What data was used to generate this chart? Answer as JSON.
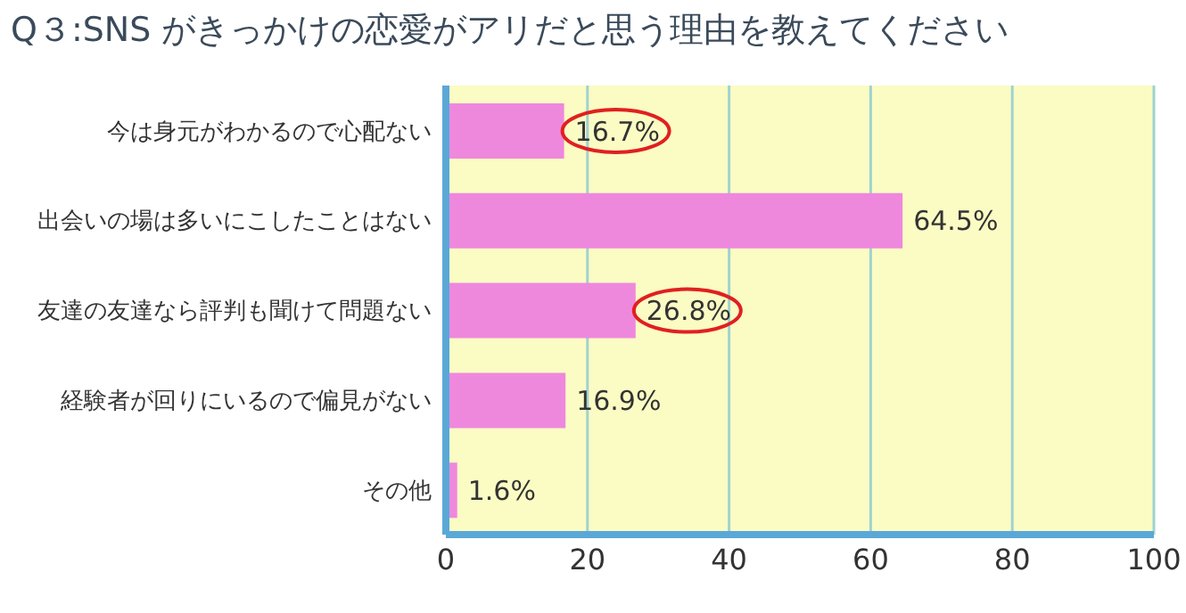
{
  "chart_data": {
    "type": "bar",
    "orientation": "horizontal",
    "title": "Q３:SNS がきっかけの恋愛がアリだと思う理由を教えてください",
    "categories": [
      "今は身元がわかるので心配ない",
      "出会いの場は多いにこしたことはない",
      "友達の友達なら評判も聞けて問題ない",
      "経験者が回りにいるので偏見がない",
      "その他"
    ],
    "values": [
      16.7,
      64.5,
      26.8,
      16.9,
      1.6
    ],
    "color": "#ee88dd",
    "value_labels": [
      "16.7%",
      "64.5%",
      "26.8%",
      "16.9%",
      "1.6%"
    ],
    "xlim": [
      0,
      100
    ],
    "xticks": [
      0,
      20,
      40,
      60,
      80,
      100
    ],
    "grid": "x"
  }
}
